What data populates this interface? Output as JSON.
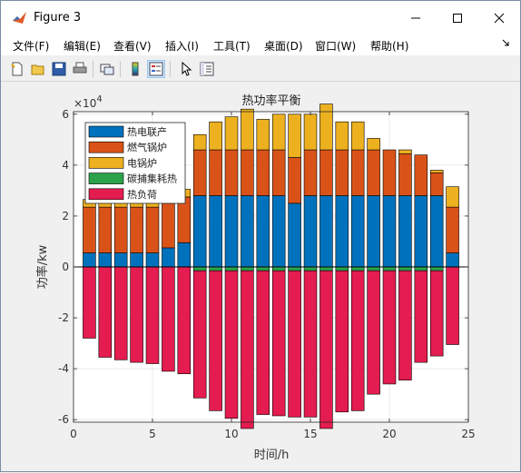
{
  "window": {
    "title": "Figure 3"
  },
  "menu": [
    "文件(F)",
    "编辑(E)",
    "查看(V)",
    "插入(I)",
    "工具(T)",
    "桌面(D)",
    "窗口(W)",
    "帮助(H)"
  ],
  "toolbar": {
    "icons": [
      "new-figure-icon",
      "open-file-icon",
      "save-icon",
      "print-icon",
      "link-plot-icon",
      "colorbar-icon",
      "legend-icon",
      "pointer-icon",
      "property-inspector-icon"
    ]
  },
  "colors": {
    "chp": "#0072bd",
    "gas_boiler": "#d95319",
    "electric_boiler": "#edb120",
    "carbon_capture": "#2ca34a",
    "heat_load": "#e41c4f"
  },
  "chart_data": {
    "type": "bar",
    "stacked": true,
    "title": "热功率平衡",
    "xlabel": "时间/h",
    "ylabel": "功率/kw",
    "exponent_label": "×10",
    "exponent_power": "4",
    "xlim": [
      0,
      25
    ],
    "ylim": [
      -61000,
      61000
    ],
    "xticks": [
      "0",
      "5",
      "10",
      "15",
      "20",
      "25"
    ],
    "yticks": [
      "-6",
      "-4",
      "-2",
      "0",
      "2",
      "4",
      "6"
    ],
    "legend_position": "top-left",
    "x": [
      1,
      2,
      3,
      4,
      5,
      6,
      7,
      8,
      9,
      10,
      11,
      12,
      13,
      14,
      15,
      16,
      17,
      18,
      19,
      20,
      21,
      22,
      23,
      24
    ],
    "series": [
      {
        "name": "热电联产",
        "color_key": "chp",
        "values": [
          5500,
          5500,
          5500,
          5500,
          5500,
          7500,
          9500,
          28000,
          28000,
          28000,
          28000,
          28000,
          28000,
          25000,
          28000,
          28000,
          28000,
          28000,
          28000,
          28000,
          28000,
          28000,
          28000,
          5500
        ]
      },
      {
        "name": "燃气锅炉",
        "color_key": "gas_boiler",
        "values": [
          18000,
          18000,
          18000,
          18000,
          18000,
          18000,
          18000,
          18000,
          18000,
          18000,
          18000,
          18000,
          18000,
          18000,
          18000,
          18000,
          18000,
          18000,
          18000,
          18000,
          16500,
          16000,
          9000,
          18000
        ]
      },
      {
        "name": "电锅炉",
        "color_key": "electric_boiler",
        "values": [
          3000,
          3000,
          3000,
          3000,
          3000,
          3000,
          3000,
          6000,
          11000,
          13000,
          16000,
          12000,
          14000,
          17000,
          14000,
          18000,
          11000,
          11000,
          4500,
          0,
          1500,
          0,
          1000,
          8000
        ]
      },
      {
        "name": "碳捕集耗热",
        "color_key": "carbon_capture",
        "values": [
          0,
          0,
          0,
          0,
          0,
          0,
          0,
          -1500,
          -1500,
          -1500,
          -1500,
          -1500,
          -1500,
          -1500,
          -1500,
          -1500,
          -1500,
          -1500,
          -1500,
          -1500,
          -1500,
          -1500,
          -1500,
          0
        ]
      },
      {
        "name": "热负荷",
        "color_key": "heat_load",
        "values": [
          -28000,
          -35500,
          -36500,
          -37500,
          -38000,
          -41000,
          -42000,
          -50000,
          -55000,
          -58000,
          -62000,
          -56500,
          -57000,
          -57500,
          -57500,
          -62000,
          -55500,
          -55000,
          -48500,
          -44500,
          -43000,
          -36000,
          -33500,
          -30500
        ]
      }
    ]
  }
}
